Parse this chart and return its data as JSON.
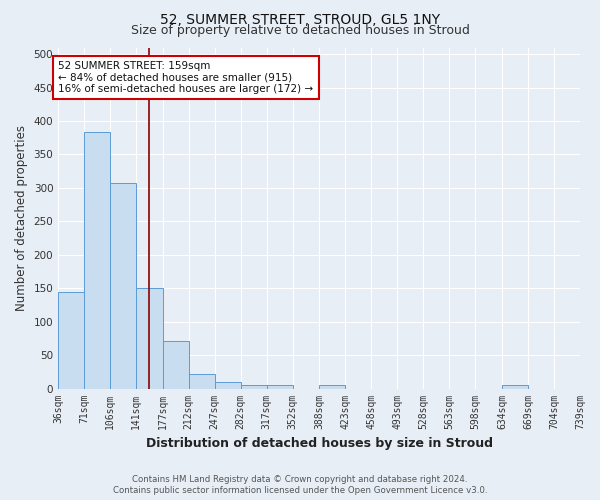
{
  "title": "52, SUMMER STREET, STROUD, GL5 1NY",
  "subtitle": "Size of property relative to detached houses in Stroud",
  "xlabel": "Distribution of detached houses by size in Stroud",
  "ylabel": "Number of detached properties",
  "bin_edges": [
    36,
    71,
    106,
    141,
    177,
    212,
    247,
    282,
    317,
    352,
    388,
    423,
    458,
    493,
    528,
    563,
    598,
    634,
    669,
    704,
    739
  ],
  "bar_heights": [
    145,
    383,
    308,
    150,
    71,
    22,
    10,
    5,
    5,
    0,
    5,
    0,
    0,
    0,
    0,
    0,
    0,
    5,
    0,
    0
  ],
  "bar_color": "#c8ddef",
  "bar_edge_color": "#5b9bd5",
  "vline_x": 159,
  "vline_color": "#8b0000",
  "annotation_text": "52 SUMMER STREET: 159sqm\n← 84% of detached houses are smaller (915)\n16% of semi-detached houses are larger (172) →",
  "annotation_box_color": "white",
  "annotation_box_edge_color": "#cc0000",
  "ylim": [
    0,
    510
  ],
  "yticks": [
    0,
    50,
    100,
    150,
    200,
    250,
    300,
    350,
    400,
    450,
    500
  ],
  "fig_bg_color": "#e8eef5",
  "plot_bg_color": "#e8eef5",
  "grid_color": "#ffffff",
  "footer_line1": "Contains HM Land Registry data © Crown copyright and database right 2024.",
  "footer_line2": "Contains public sector information licensed under the Open Government Licence v3.0.",
  "title_fontsize": 10,
  "subtitle_fontsize": 9,
  "xlabel_fontsize": 9,
  "ylabel_fontsize": 8.5,
  "tick_fontsize": 7,
  "annot_fontsize": 7.5
}
